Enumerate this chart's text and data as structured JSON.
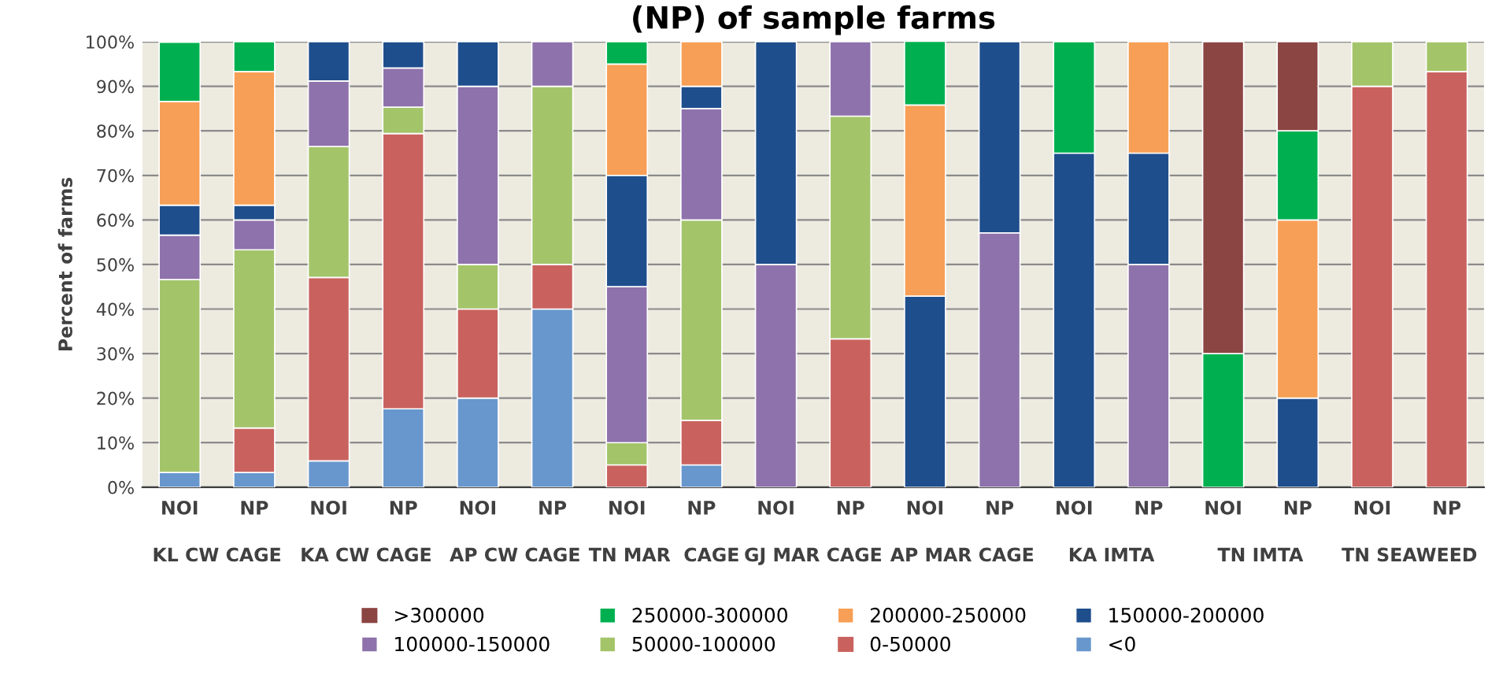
{
  "chart_data": {
    "type": "bar",
    "stacked": true,
    "title": "(NP) of sample farms",
    "ylabel": "Percent of farms",
    "categories": [
      "NOI",
      "NP",
      "NOI",
      "NP",
      "NOI",
      "NP",
      "NOI",
      "NP",
      "NOI",
      "NP",
      "NOI",
      "NP",
      "NOI",
      "NP",
      "NOI",
      "NP",
      "NOI",
      "NP"
    ],
    "annotations": [
      "KL CW CAGE",
      "KA CW CAGE",
      "AP CW CAGE",
      "TN MAR  CAGE",
      "GJ MAR CAGE",
      "AP MAR CAGE",
      "KA IMTA",
      "TN IMTA",
      "TN SEAWEED"
    ],
    "series": [
      {
        "name": "<0",
        "color": "#6897cd",
        "values": [
          3.3,
          3.3,
          5.9,
          17.6,
          20,
          40,
          0,
          5,
          0,
          0,
          0,
          0,
          0,
          0,
          0,
          0,
          0,
          0
        ]
      },
      {
        "name": "0-50000",
        "color": "#c9625e",
        "values": [
          0,
          10,
          41.2,
          61.8,
          20,
          10,
          5,
          10,
          0,
          33.3,
          0,
          0,
          0,
          0,
          0,
          0,
          90,
          93.3
        ]
      },
      {
        "name": "50000-100000",
        "color": "#a4c46a",
        "values": [
          43.3,
          40,
          29.4,
          5.9,
          10,
          40,
          5,
          45,
          0,
          50,
          0,
          0,
          0,
          0,
          0,
          0,
          10,
          6.7
        ]
      },
      {
        "name": "100000-150000",
        "color": "#8e72ab",
        "values": [
          10,
          6.7,
          14.7,
          8.8,
          40,
          10,
          35,
          25,
          50,
          16.7,
          0,
          57.1,
          0,
          50,
          0,
          0,
          0,
          0
        ]
      },
      {
        "name": "150000-200000",
        "color": "#1f4e8c",
        "values": [
          6.7,
          3.3,
          8.8,
          5.9,
          10,
          0,
          25,
          5,
          50,
          0,
          42.9,
          42.9,
          75,
          25,
          0,
          20,
          0,
          0
        ]
      },
      {
        "name": "200000-250000",
        "color": "#f79f56",
        "values": [
          23.3,
          30,
          0,
          0,
          0,
          0,
          25,
          10,
          0,
          0,
          42.9,
          0,
          0,
          25,
          0,
          40,
          0,
          0
        ]
      },
      {
        "name": "250000-300000",
        "color": "#00b050",
        "values": [
          13.3,
          6.7,
          0,
          0,
          0,
          0,
          5,
          0,
          0,
          0,
          14.3,
          0,
          25,
          0,
          30,
          20,
          0,
          0
        ]
      },
      {
        "name": ">300000",
        "color": "#8b4543",
        "values": [
          0,
          0,
          0,
          0,
          0,
          0,
          0,
          0,
          0,
          0,
          0,
          0,
          0,
          0,
          70,
          20,
          0,
          0
        ]
      }
    ],
    "ylim": [
      0,
      100
    ],
    "yticks": [
      {
        "value": 0,
        "label": "0%"
      },
      {
        "value": 10,
        "label": "10%"
      },
      {
        "value": 20,
        "label": "20%"
      },
      {
        "value": 30,
        "label": "30%"
      },
      {
        "value": 40,
        "label": "40%"
      },
      {
        "value": 50,
        "label": "50%"
      },
      {
        "value": 60,
        "label": "60%"
      },
      {
        "value": 70,
        "label": "70%"
      },
      {
        "value": 80,
        "label": "80%"
      },
      {
        "value": 90,
        "label": "90%"
      },
      {
        "value": 100,
        "label": "100%"
      }
    ],
    "grid": "y",
    "legend": "bottom"
  }
}
